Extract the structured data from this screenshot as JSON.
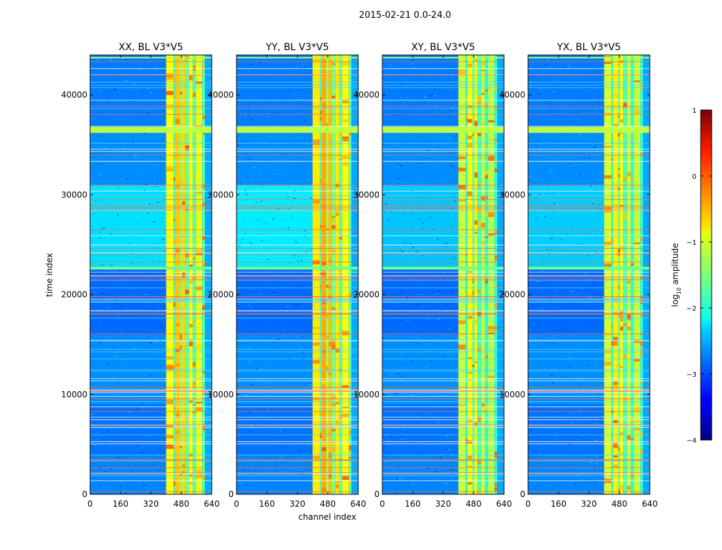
{
  "figure_title": "2015-02-21 0.0-24.0",
  "chart_data": {
    "type": "heatmap",
    "suptitle": "2015-02-21 0.0-24.0",
    "xlabel": "channel index",
    "ylabel": "time index",
    "xlim": [
      0,
      640
    ],
    "ylim": [
      0,
      44000
    ],
    "xticks": [
      0,
      160,
      320,
      480,
      640
    ],
    "yticks": [
      0,
      10000,
      20000,
      30000,
      40000
    ],
    "panels": [
      {
        "title": "XX, BL V3*V5",
        "polarization": "XX"
      },
      {
        "title": "YY, BL V3*V5",
        "polarization": "YY"
      },
      {
        "title": "XY, BL V3*V5",
        "polarization": "XY"
      },
      {
        "title": "YX, BL V3*V5",
        "polarization": "YX"
      }
    ],
    "colorbar": {
      "label": "log10 amplitude",
      "label_base": "log",
      "label_sub": "10",
      "label_rest": " amplitude",
      "vmin": -4,
      "vmax": 1,
      "ticks": [
        1,
        0,
        -1,
        -2,
        -3,
        -4
      ],
      "tick_labels": [
        "1",
        "0",
        "−1",
        "−2",
        "−3",
        "−4"
      ],
      "colormap": "jet"
    },
    "features": {
      "high_amplitude_channel_band": [
        400,
        600
      ],
      "flagged_time_band": [
        36200,
        36800
      ],
      "flagged_time_band_2": [
        22500,
        22800
      ]
    }
  }
}
